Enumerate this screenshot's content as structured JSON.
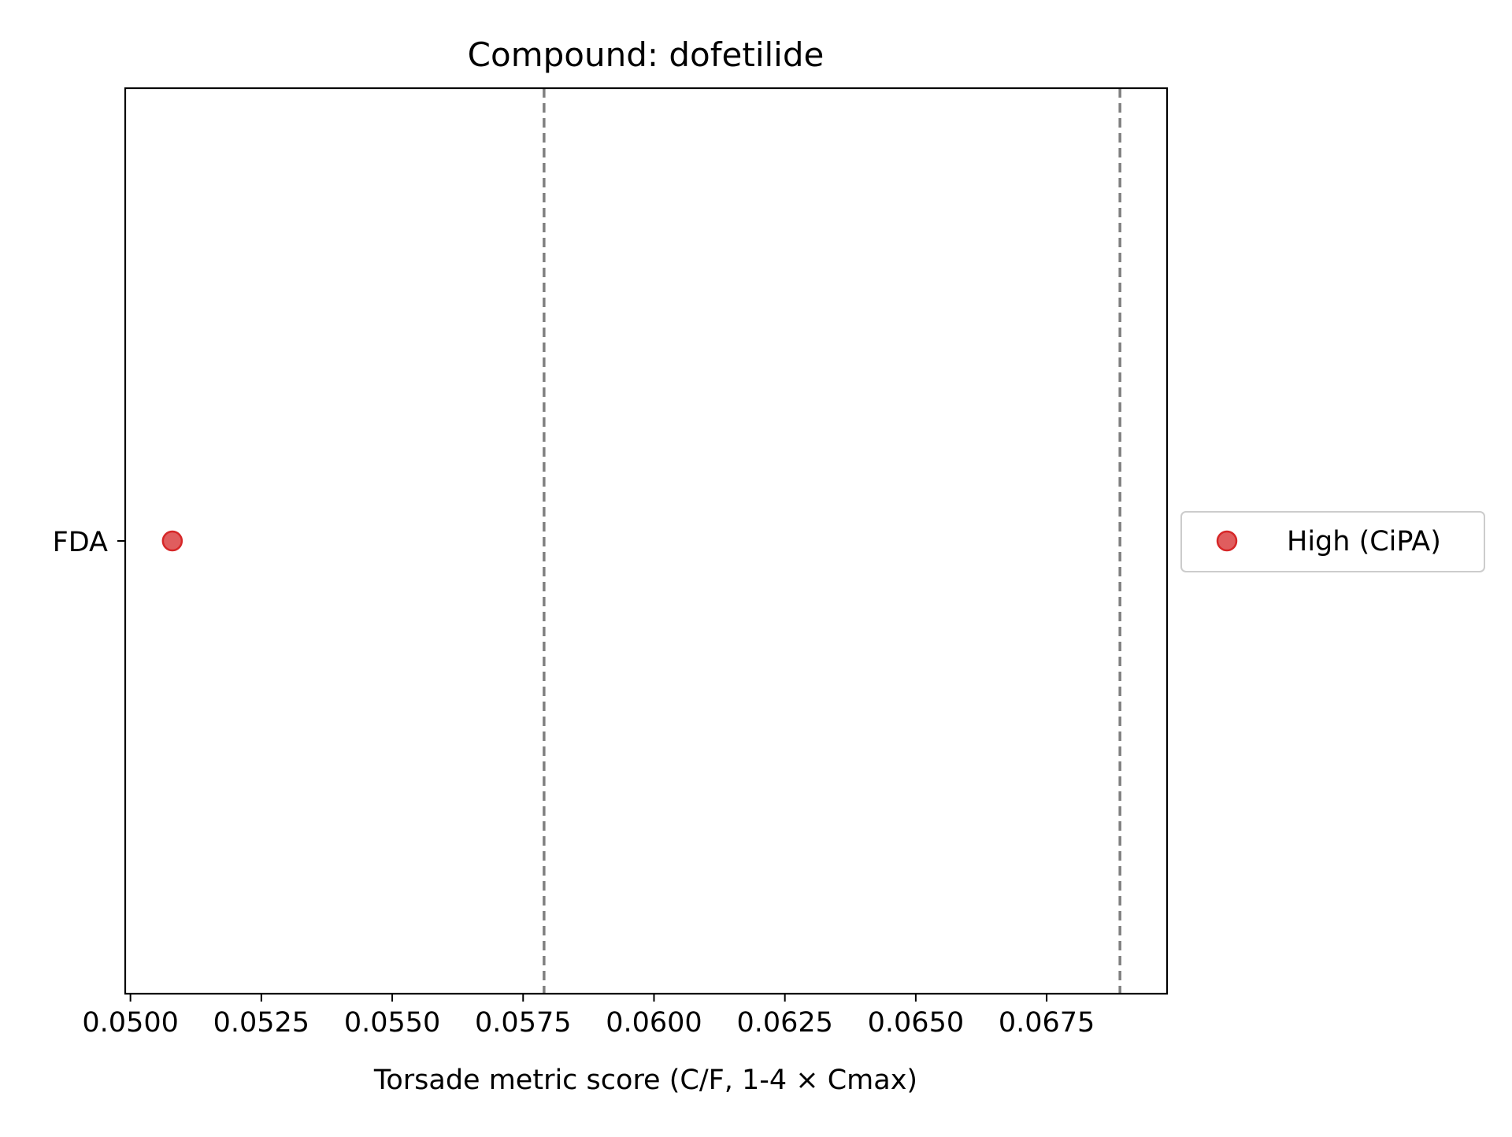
{
  "chart_data": {
    "type": "scatter",
    "title": "Compound: dofetilide",
    "xlabel": "Torsade metric score (C/F, 1-4 × Cmax)",
    "ylabel": "",
    "xlim": [
      0.0499,
      0.0698
    ],
    "x_ticks": [
      0.05,
      0.0525,
      0.055,
      0.0575,
      0.06,
      0.0625,
      0.065,
      0.0675
    ],
    "x_tick_labels": [
      "0.0500",
      "0.0525",
      "0.0550",
      "0.0575",
      "0.0600",
      "0.0625",
      "0.0650",
      "0.0675"
    ],
    "categories": [
      "FDA"
    ],
    "series": [
      {
        "name": "High (CiPA)",
        "color": "#d62728",
        "points": [
          {
            "category": "FDA",
            "x": 0.0508
          }
        ]
      }
    ],
    "reference_lines": [
      {
        "x": 0.0579,
        "style": "dashed",
        "color": "#808080"
      },
      {
        "x": 0.0689,
        "style": "dashed",
        "color": "#808080"
      }
    ],
    "grid": false,
    "legend_position": "outside right, center"
  }
}
